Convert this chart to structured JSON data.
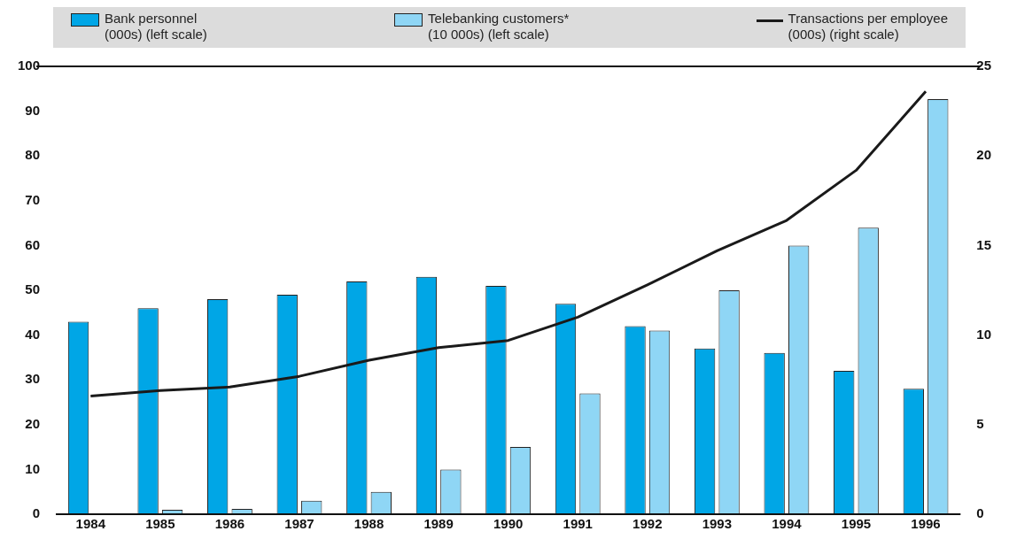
{
  "chart_data": {
    "type": "bar",
    "categories": [
      "1984",
      "1985",
      "1986",
      "1987",
      "1988",
      "1989",
      "1990",
      "1991",
      "1992",
      "1993",
      "1994",
      "1995",
      "1996"
    ],
    "series": [
      {
        "name": "Bank personnel (000s) (left scale)",
        "color": "#00a6e6",
        "values": [
          43,
          46,
          48,
          49,
          52,
          53,
          51,
          47,
          42,
          37,
          36,
          32,
          28
        ]
      },
      {
        "name": "Telebanking customers* (10 000s) (left scale)",
        "color": "#8fd6f5",
        "values": [
          null,
          1,
          1.2,
          3,
          5,
          10,
          15,
          27,
          41,
          50,
          60,
          64,
          92.7
        ]
      },
      {
        "name": "Transactions per employee (000s) (right scale)",
        "color": "#1a1a1a",
        "type": "line",
        "axis": "y2",
        "values": [
          6.6,
          6.9,
          7.1,
          7.7,
          8.6,
          9.3,
          9.7,
          11,
          12.8,
          14.7,
          16.4,
          19.2,
          23.6
        ]
      }
    ],
    "ylim": [
      0,
      100
    ],
    "yticks": [
      0,
      10,
      20,
      30,
      40,
      50,
      60,
      70,
      80,
      90,
      100
    ],
    "y2lim": [
      0,
      25
    ],
    "y2ticks": [
      0,
      5,
      10,
      15,
      20,
      25
    ],
    "grid": false,
    "legend": "top",
    "marker": "none",
    "line_style": "solid"
  }
}
